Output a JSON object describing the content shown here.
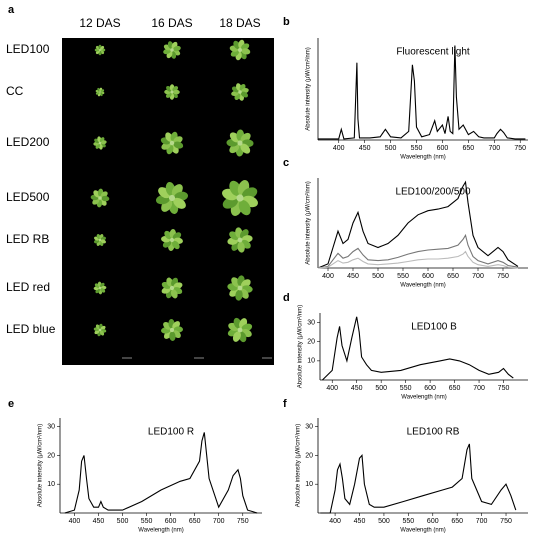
{
  "photo_panel": {
    "panel": "a",
    "column_headers": [
      "12 DAS",
      "16 DAS",
      "18 DAS"
    ],
    "row_labels": [
      "LED100",
      "CC",
      "LED200",
      "LED500",
      "LED RB",
      "LED red",
      "LED blue"
    ]
  },
  "chart_data": [
    {
      "type": "line",
      "panel": "b",
      "title": "Fluorescent light",
      "x_label": "Wavelength (nm)",
      "y_label": "Absolute intensity (μW/cm²/nm)",
      "x": [
        360,
        380,
        400,
        405,
        410,
        430,
        435,
        437,
        440,
        460,
        480,
        490,
        500,
        520,
        535,
        542,
        546,
        550,
        560,
        575,
        585,
        590,
        600,
        605,
        611,
        615,
        620,
        624,
        627,
        632,
        640,
        650,
        660,
        670,
        680,
        700,
        705,
        712,
        718,
        725,
        740,
        760
      ],
      "series": [
        {
          "color": "#000000",
          "values": [
            1,
            1,
            1,
            10,
            1,
            2,
            72,
            20,
            2,
            2,
            3,
            10,
            3,
            2,
            8,
            70,
            55,
            12,
            3,
            5,
            18,
            8,
            14,
            6,
            22,
            8,
            6,
            88,
            40,
            10,
            14,
            5,
            8,
            3,
            2,
            2,
            6,
            10,
            7,
            2,
            1,
            1
          ]
        }
      ],
      "xlim": [
        360,
        765
      ],
      "ylim": [
        0,
        95
      ],
      "xticks": [
        400,
        450,
        500,
        550,
        600,
        650,
        700,
        750
      ]
    },
    {
      "type": "line",
      "panel": "c",
      "title": "LED100/200/500",
      "x_label": "Wavelength (nm)",
      "y_label": "Absolute intensity (μW/cm²/nm)",
      "x": [
        380,
        400,
        410,
        420,
        430,
        440,
        450,
        460,
        470,
        480,
        500,
        520,
        540,
        560,
        580,
        600,
        620,
        640,
        660,
        670,
        675,
        680,
        690,
        700,
        720,
        740,
        750,
        760,
        780
      ],
      "series": [
        {
          "color": "#000000",
          "values": [
            0,
            5,
            25,
            45,
            30,
            35,
            55,
            68,
            45,
            30,
            25,
            30,
            40,
            55,
            65,
            70,
            72,
            75,
            85,
            100,
            105,
            80,
            40,
            25,
            15,
            25,
            20,
            10,
            2
          ]
        },
        {
          "color": "#777777",
          "values": [
            0,
            2,
            10,
            18,
            12,
            14,
            20,
            24,
            16,
            10,
            9,
            10,
            13,
            17,
            20,
            22,
            23,
            24,
            28,
            35,
            40,
            28,
            14,
            9,
            5,
            9,
            7,
            3,
            1
          ]
        },
        {
          "color": "#bbbbbb",
          "values": [
            0,
            1,
            5,
            9,
            6,
            7,
            10,
            12,
            8,
            5,
            4,
            5,
            6,
            8,
            10,
            11,
            11,
            12,
            14,
            17,
            20,
            14,
            7,
            4,
            2,
            4,
            3,
            1,
            0
          ]
        }
      ],
      "xlim": [
        380,
        800
      ],
      "ylim": [
        0,
        110
      ],
      "xticks": [
        400,
        450,
        500,
        550,
        600,
        650,
        700,
        750
      ]
    },
    {
      "type": "line",
      "panel": "d",
      "title": "LED100 B",
      "x_label": "Wavelength (nm)",
      "y_label": "Absolute intensity (μW/cm²/nm)",
      "x": [
        380,
        400,
        410,
        415,
        420,
        430,
        440,
        450,
        455,
        460,
        470,
        480,
        500,
        540,
        580,
        620,
        640,
        660,
        680,
        700,
        720,
        740,
        750,
        760,
        770
      ],
      "series": [
        {
          "color": "#000000",
          "values": [
            0,
            5,
            22,
            28,
            18,
            10,
            22,
            33,
            25,
            12,
            8,
            5,
            4,
            5,
            8,
            10,
            11,
            10,
            8,
            5,
            3,
            4,
            6,
            3,
            1
          ]
        }
      ],
      "xlim": [
        375,
        800
      ],
      "ylim": [
        0,
        35
      ],
      "xticks": [
        400,
        450,
        500,
        550,
        600,
        650,
        700,
        750
      ],
      "yticks": [
        10,
        20,
        30
      ]
    },
    {
      "type": "line",
      "panel": "e",
      "title": "LED100 R",
      "x_label": "Wavelength (nm)",
      "y_label": "Absolute intensity (μW/cm²/nm)",
      "x": [
        380,
        400,
        410,
        415,
        420,
        425,
        430,
        440,
        450,
        455,
        460,
        470,
        480,
        500,
        540,
        580,
        620,
        640,
        660,
        665,
        670,
        680,
        700,
        720,
        730,
        740,
        745,
        750,
        760,
        780
      ],
      "series": [
        {
          "color": "#000000",
          "values": [
            0,
            1,
            8,
            18,
            20,
            12,
            5,
            2,
            2,
            4,
            2,
            1,
            1,
            1,
            4,
            8,
            11,
            12,
            18,
            25,
            28,
            12,
            2,
            8,
            13,
            15,
            12,
            6,
            1,
            0
          ]
        }
      ],
      "xlim": [
        370,
        790
      ],
      "ylim": [
        0,
        33
      ],
      "xticks": [
        400,
        450,
        500,
        550,
        600,
        650,
        700,
        750
      ],
      "yticks": [
        10,
        20,
        30
      ]
    },
    {
      "type": "line",
      "panel": "f",
      "title": "LED100 RB",
      "x_label": "Wavelength (nm)",
      "y_label": "Absolute intensity (μW/cm²/nm)",
      "x": [
        370,
        390,
        400,
        405,
        410,
        415,
        420,
        430,
        440,
        450,
        455,
        460,
        470,
        480,
        500,
        540,
        580,
        620,
        640,
        660,
        670,
        675,
        680,
        700,
        720,
        740,
        750,
        760,
        770
      ],
      "series": [
        {
          "color": "#000000",
          "values": [
            0,
            0,
            8,
            15,
            17,
            12,
            5,
            3,
            10,
            19,
            20,
            10,
            3,
            2,
            2,
            4,
            6,
            8,
            9,
            12,
            22,
            24,
            12,
            4,
            3,
            8,
            10,
            6,
            1
          ]
        }
      ],
      "xlim": [
        365,
        795
      ],
      "ylim": [
        0,
        33
      ],
      "xticks": [
        400,
        450,
        500,
        550,
        600,
        650,
        700,
        750
      ],
      "yticks": [
        10,
        20,
        30
      ]
    }
  ]
}
